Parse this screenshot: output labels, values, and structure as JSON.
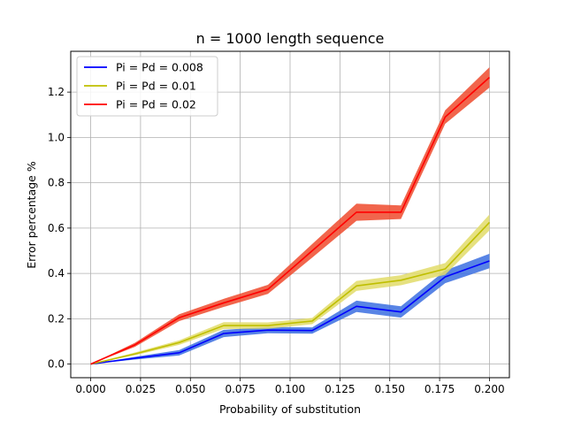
{
  "chart_data": {
    "type": "line",
    "title": "n = 1000 length sequence",
    "xlabel": "Probability of substitution",
    "ylabel": "Error percentage %",
    "xlim": [
      -0.01,
      0.21
    ],
    "ylim": [
      -0.06,
      1.38
    ],
    "grid": true,
    "legend_position": "top-left",
    "xticks": [
      0.0,
      0.025,
      0.05,
      0.075,
      0.1,
      0.125,
      0.15,
      0.175,
      0.2
    ],
    "xtick_labels": [
      "0.000",
      "0.025",
      "0.050",
      "0.075",
      "0.100",
      "0.125",
      "0.150",
      "0.175",
      "0.200"
    ],
    "yticks": [
      0.0,
      0.2,
      0.4,
      0.6,
      0.8,
      1.0,
      1.2
    ],
    "ytick_labels": [
      "0.0",
      "0.2",
      "0.4",
      "0.6",
      "0.8",
      "1.0",
      "1.2"
    ],
    "x": [
      0.0,
      0.0222,
      0.0444,
      0.0667,
      0.0889,
      0.1111,
      0.1333,
      0.1556,
      0.1778,
      0.2
    ],
    "series": [
      {
        "name": "Pi = Pd = 0.008",
        "color": "#0000ff",
        "band_color": "#3b6fe0",
        "values": [
          0.0,
          0.026,
          0.05,
          0.135,
          0.15,
          0.148,
          0.255,
          0.23,
          0.385,
          0.455
        ],
        "band": [
          0.0,
          0.006,
          0.012,
          0.016,
          0.014,
          0.014,
          0.025,
          0.025,
          0.028,
          0.032
        ]
      },
      {
        "name": "Pi = Pd = 0.01",
        "color": "#bfbf00",
        "band_color": "#e2dc6a",
        "values": [
          0.0,
          0.045,
          0.095,
          0.17,
          0.17,
          0.19,
          0.345,
          0.37,
          0.42,
          0.625
        ],
        "band": [
          0.0,
          0.006,
          0.01,
          0.015,
          0.014,
          0.014,
          0.022,
          0.022,
          0.026,
          0.035
        ]
      },
      {
        "name": "Pi = Pd = 0.02",
        "color": "#ff0000",
        "band_color": "#ee4a2d",
        "values": [
          0.0,
          0.085,
          0.205,
          0.27,
          0.33,
          0.5,
          0.67,
          0.67,
          1.09,
          1.265
        ],
        "band": [
          0.0,
          0.009,
          0.015,
          0.018,
          0.02,
          0.03,
          0.038,
          0.03,
          0.03,
          0.045
        ]
      }
    ]
  }
}
